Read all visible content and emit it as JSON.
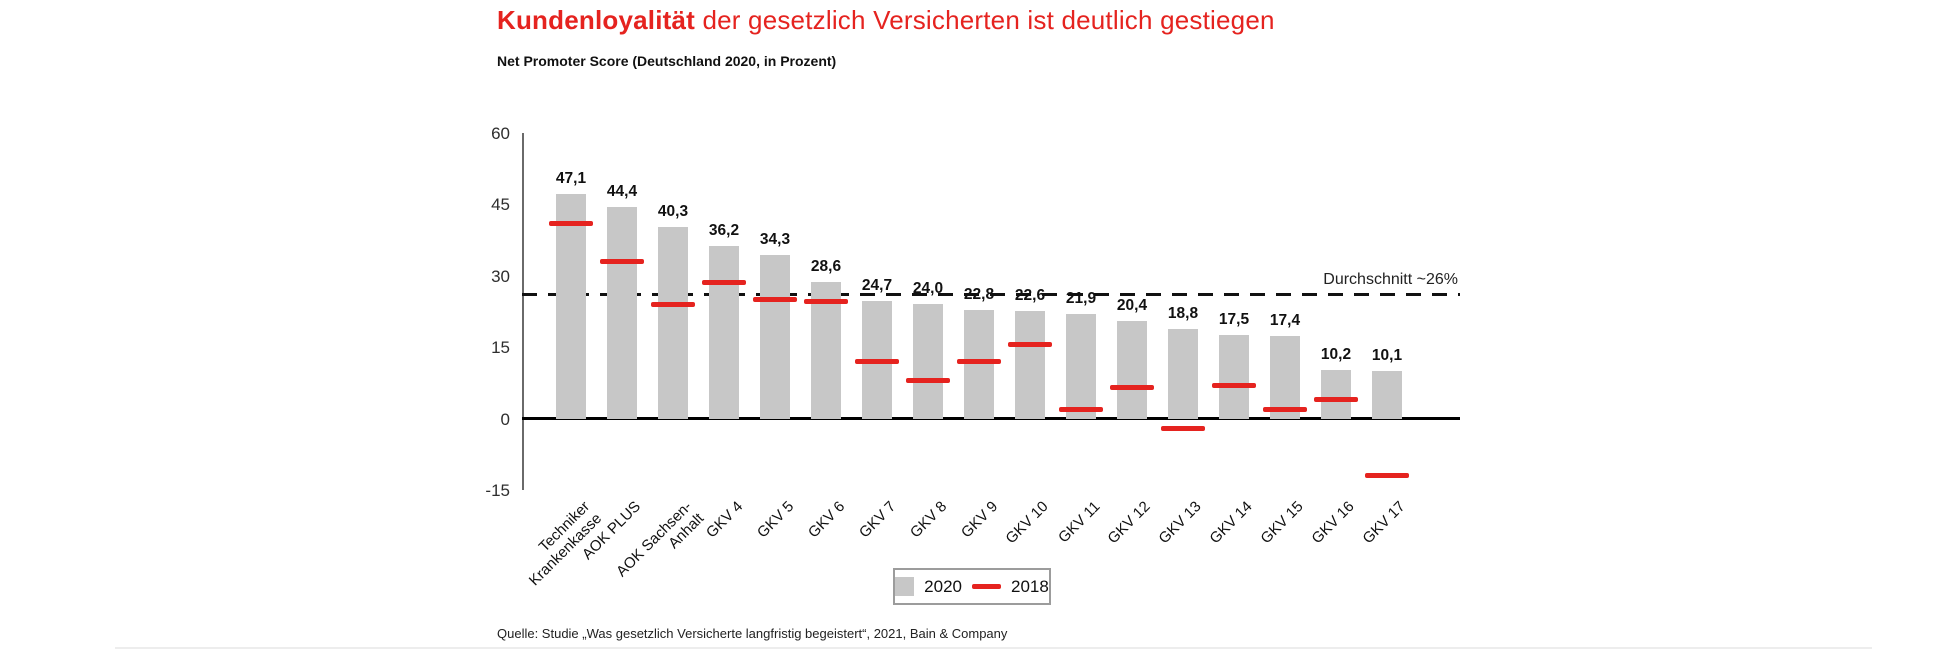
{
  "header": {
    "title_emphasis": "Kundenloyalität",
    "title_rest": " der gesetzlich Versicherten ist deutlich gestiegen",
    "subtitle": "Net Promoter Score (Deutschland 2020, in Prozent)"
  },
  "chart_data": {
    "type": "bar",
    "categories": [
      "Techniker\nKrankenkasse",
      "AOK PLUS",
      "AOK Sachsen-\nAnhalt",
      "GKV 4",
      "GKV 5",
      "GKV 6",
      "GKV 7",
      "GKV 8",
      "GKV 9",
      "GKV 10",
      "GKV 11",
      "GKV 12",
      "GKV 13",
      "GKV 14",
      "GKV 15",
      "GKV 16",
      "GKV 17"
    ],
    "series": [
      {
        "name": "2020",
        "style": "bar",
        "color": "#c7c7c7",
        "values": [
          47.1,
          44.4,
          40.3,
          36.2,
          34.3,
          28.6,
          24.7,
          24.0,
          22.8,
          22.6,
          21.9,
          20.4,
          18.8,
          17.5,
          17.4,
          10.2,
          10.1
        ],
        "labels": [
          "47,1",
          "44,4",
          "40,3",
          "36,2",
          "34,3",
          "28,6",
          "24,7",
          "24,0",
          "22,8",
          "22,6",
          "21,9",
          "20,4",
          "18,8",
          "17,5",
          "17,4",
          "10,2",
          "10,1"
        ]
      },
      {
        "name": "2018",
        "style": "dash-marker",
        "color": "#e5231f",
        "values": [
          41,
          33,
          24,
          28.5,
          25,
          24.5,
          12,
          8,
          12,
          15.5,
          2,
          6.5,
          -2,
          7,
          2,
          4,
          -12
        ]
      }
    ],
    "ylim": [
      -15,
      60
    ],
    "yticks": [
      60,
      45,
      30,
      15,
      0,
      -15
    ],
    "average_line": {
      "value": 26,
      "label": "Durchschnitt ~26%",
      "style": "dashed"
    },
    "grid": false,
    "legend_position": "bottom-center",
    "title": "Kundenloyalität der gesetzlich Versicherten ist deutlich gestiegen",
    "subtitle": "Net Promoter Score (Deutschland 2020, in Prozent)"
  },
  "legend": {
    "items": [
      {
        "label": "2020",
        "swatch": "square",
        "color": "#c7c7c7"
      },
      {
        "label": "2018",
        "swatch": "dash",
        "color": "#e5231f"
      }
    ]
  },
  "footer": {
    "source": "Quelle: Studie „Was gesetzlich Versicherte langfristig begeistert“, 2021, Bain & Company"
  },
  "colors": {
    "accent_red": "#e5231f",
    "bar_gray": "#c7c7c7",
    "text": "#1a1a1a"
  }
}
